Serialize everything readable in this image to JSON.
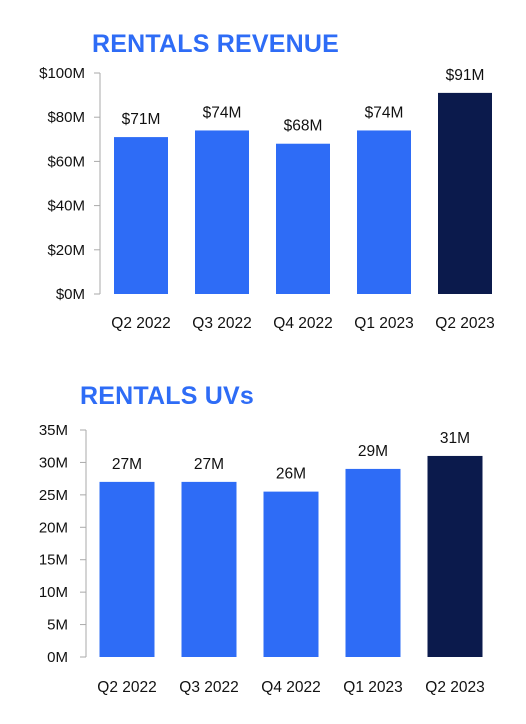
{
  "colors": {
    "title": "#2e6cf6",
    "bar": "#2e6cf6",
    "bar_highlight": "#0b1a4c",
    "axis": "#aaaaaa"
  },
  "chart_data": [
    {
      "type": "bar",
      "title": "RENTALS REVENUE",
      "categories": [
        "Q2 2022",
        "Q3 2022",
        "Q4 2022",
        "Q1 2023",
        "Q2 2023"
      ],
      "values": [
        71,
        74,
        68,
        74,
        91
      ],
      "data_labels": [
        "$71M",
        "$74M",
        "$68M",
        "$74M",
        "$91M"
      ],
      "highlight_index": 4,
      "ylim": [
        0,
        100
      ],
      "yticks": [
        0,
        20,
        40,
        60,
        80,
        100
      ],
      "ytick_labels": [
        "$0M",
        "$20M",
        "$40M",
        "$60M",
        "$80M",
        "$100M"
      ],
      "xlabel": "",
      "ylabel": "",
      "grid": false,
      "legend": "none"
    },
    {
      "type": "bar",
      "title": "RENTALS UVs",
      "categories": [
        "Q2 2022",
        "Q3 2022",
        "Q4 2022",
        "Q1 2023",
        "Q2 2023"
      ],
      "values": [
        27,
        27,
        25.5,
        29,
        31
      ],
      "data_labels": [
        "27M",
        "27M",
        "26M",
        "29M",
        "31M"
      ],
      "highlight_index": 4,
      "ylim": [
        0,
        35
      ],
      "yticks": [
        0,
        5,
        10,
        15,
        20,
        25,
        30,
        35
      ],
      "ytick_labels": [
        "0M",
        "5M",
        "10M",
        "15M",
        "20M",
        "25M",
        "30M",
        "35M"
      ],
      "xlabel": "",
      "ylabel": "",
      "grid": false,
      "legend": "none"
    }
  ]
}
